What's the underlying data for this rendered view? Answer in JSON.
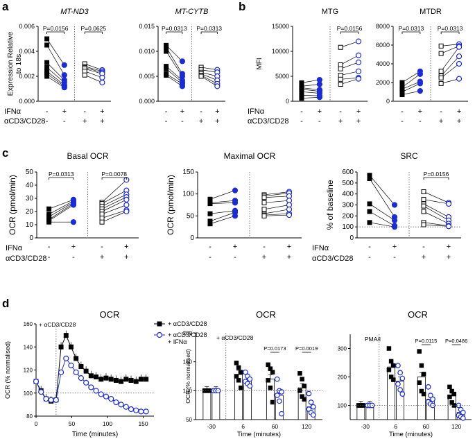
{
  "figure": {
    "panel_letters": [
      "a",
      "b",
      "c",
      "d"
    ],
    "condition_rows": {
      "ifna": "IFNα",
      "cd3": "αCD3/CD28"
    },
    "signs": {
      "minus": "-",
      "plus": "+"
    }
  },
  "colors": {
    "black": "#000000",
    "blue": "#1a2bd9",
    "grid": "#555555"
  },
  "chart_data": [
    {
      "id": "a1",
      "panel": "a",
      "type": "scatter",
      "title": "MT-ND3",
      "title_italic": true,
      "ylabel": "Expression Relative\nto 18s",
      "ylim": [
        0,
        0.006
      ],
      "yticks": [
        0,
        0.002,
        0.004,
        0.006
      ],
      "ytick_labels": [
        "0.000",
        "0.002",
        "0.004",
        "0.006"
      ],
      "groups": [
        {
          "ifna": "-",
          "cd3": "-",
          "marker": "square-filled",
          "values": [
            0.005,
            0.0045,
            0.0031,
            0.0027,
            0.0024,
            0.0022,
            0.002
          ]
        },
        {
          "ifna": "+",
          "cd3": "-",
          "marker": "circle-filled",
          "values": [
            0.0029,
            0.0021,
            0.0017,
            0.0015,
            0.0013,
            0.0012,
            0.0011
          ]
        },
        {
          "ifna": "-",
          "cd3": "+",
          "marker": "square-open",
          "values": [
            0.003,
            0.0028,
            0.0027,
            0.0026,
            0.0024,
            0.0021
          ]
        },
        {
          "ifna": "+",
          "cd3": "+",
          "marker": "circle-open",
          "values": [
            0.0025,
            0.0024,
            0.0023,
            0.0022,
            0.0019,
            0.0015
          ]
        }
      ],
      "pvalues": [
        {
          "pair": [
            0,
            1
          ],
          "label": "P=0.0156"
        },
        {
          "pair": [
            2,
            3
          ],
          "label": "P=0.0625"
        }
      ]
    },
    {
      "id": "a2",
      "panel": "a",
      "type": "scatter",
      "title": "MT-CYTB",
      "title_italic": true,
      "ylabel": "",
      "ylim": [
        0,
        0.015
      ],
      "yticks": [
        0,
        0.005,
        0.01,
        0.015
      ],
      "ytick_labels": [
        "0.000",
        "0.005",
        "0.010",
        "0.015"
      ],
      "groups": [
        {
          "ifna": "-",
          "cd3": "-",
          "marker": "square-filled",
          "values": [
            0.0112,
            0.0108,
            0.01,
            0.007,
            0.0065,
            0.0055,
            0.0052
          ]
        },
        {
          "ifna": "+",
          "cd3": "-",
          "marker": "circle-filled",
          "values": [
            0.008,
            0.0055,
            0.005,
            0.0042,
            0.0038,
            0.0035,
            0.003
          ]
        },
        {
          "ifna": "-",
          "cd3": "+",
          "marker": "square-open",
          "values": [
            0.0068,
            0.0063,
            0.0058,
            0.0055,
            0.0052,
            0.005
          ]
        },
        {
          "ifna": "+",
          "cd3": "+",
          "marker": "circle-open",
          "values": [
            0.0063,
            0.0058,
            0.005,
            0.0042,
            0.0035,
            0.003
          ]
        }
      ],
      "pvalues": [
        {
          "pair": [
            0,
            1
          ],
          "label": "P=0.0313"
        },
        {
          "pair": [
            2,
            3
          ],
          "label": "P=0.0313"
        }
      ]
    },
    {
      "id": "b1",
      "panel": "b",
      "type": "scatter",
      "title": "MTG",
      "ylabel": "MFI",
      "ylim": [
        0,
        15000
      ],
      "yticks": [
        0,
        5000,
        10000,
        15000
      ],
      "ytick_labels": [
        "0",
        "5000",
        "10000",
        "15000"
      ],
      "groups": [
        {
          "ifna": "-",
          "cd3": "-",
          "marker": "square-filled",
          "values": [
            3700,
            3000,
            2700,
            2400,
            1900,
            1200,
            600
          ]
        },
        {
          "ifna": "+",
          "cd3": "-",
          "marker": "circle-filled",
          "values": [
            4300,
            3400,
            2300,
            2000,
            1600,
            1100,
            800
          ]
        },
        {
          "ifna": "-",
          "cd3": "+",
          "marker": "square-open",
          "values": [
            10800,
            7300,
            6500,
            5200,
            4400,
            3400
          ]
        },
        {
          "ifna": "+",
          "cd3": "+",
          "marker": "circle-open",
          "values": [
            12000,
            9200,
            7800,
            6000,
            4700,
            4500
          ]
        }
      ],
      "pvalues": [
        {
          "pair": [
            2,
            3
          ],
          "label": "P=0.0156"
        }
      ]
    },
    {
      "id": "b2",
      "panel": "b",
      "type": "scatter",
      "title": "MTDR",
      "ylabel": "",
      "ylim": [
        0,
        8000
      ],
      "yticks": [
        0,
        2000,
        4000,
        6000,
        8000
      ],
      "ytick_labels": [
        "0",
        "2000",
        "4000",
        "6000",
        "8000"
      ],
      "groups": [
        {
          "ifna": "-",
          "cd3": "-",
          "marker": "square-filled",
          "values": [
            2000,
            1500,
            1300,
            1000,
            700
          ]
        },
        {
          "ifna": "+",
          "cd3": "-",
          "marker": "circle-filled",
          "values": [
            3200,
            2900,
            2100,
            1900,
            1100
          ]
        },
        {
          "ifna": "-",
          "cd3": "+",
          "marker": "square-open",
          "values": [
            5900,
            5100,
            3200,
            2700,
            2500,
            1900
          ]
        },
        {
          "ifna": "+",
          "cd3": "+",
          "marker": "circle-open",
          "values": [
            6100,
            5900,
            5800,
            4800,
            4000,
            2400
          ]
        }
      ],
      "pvalues": [
        {
          "pair": [
            0,
            1
          ],
          "label": "P=0.0313"
        },
        {
          "pair": [
            2,
            3
          ],
          "label": "P=0.0313"
        }
      ]
    },
    {
      "id": "c1",
      "panel": "c",
      "type": "scatter",
      "title": "Basal OCR",
      "ylabel": "OCR (pmol/min)",
      "ylim": [
        0,
        50
      ],
      "yticks": [
        0,
        10,
        20,
        30,
        40,
        50
      ],
      "ytick_labels": [
        "0",
        "10",
        "20",
        "30",
        "40",
        "50"
      ],
      "groups": [
        {
          "ifna": "-",
          "cd3": "-",
          "marker": "square-filled",
          "values": [
            22,
            18,
            16,
            14,
            13,
            12
          ]
        },
        {
          "ifna": "+",
          "cd3": "-",
          "marker": "circle-filled",
          "values": [
            29,
            28,
            27,
            26,
            25,
            12
          ]
        },
        {
          "ifna": "-",
          "cd3": "+",
          "marker": "square-open",
          "values": [
            27,
            26,
            24,
            22,
            20,
            18,
            15,
            12
          ]
        },
        {
          "ifna": "+",
          "cd3": "+",
          "marker": "circle-open",
          "values": [
            44,
            36,
            33,
            31,
            29,
            25,
            21,
            20
          ]
        }
      ],
      "pvalues": [
        {
          "pair": [
            0,
            1
          ],
          "label": "P=0.0313"
        },
        {
          "pair": [
            2,
            3
          ],
          "label": "P=0.0078"
        }
      ]
    },
    {
      "id": "c2",
      "panel": "c",
      "type": "scatter",
      "title": "Maximal OCR",
      "ylabel": "OCR (pmol/min)",
      "ylim": [
        0,
        150
      ],
      "yticks": [
        0,
        50,
        100,
        150
      ],
      "ytick_labels": [
        "0",
        "50",
        "100",
        "150"
      ],
      "groups": [
        {
          "ifna": "-",
          "cd3": "-",
          "marker": "square-filled",
          "values": [
            88,
            80,
            78,
            55,
            38,
            32
          ]
        },
        {
          "ifna": "+",
          "cd3": "-",
          "marker": "circle-filled",
          "values": [
            108,
            85,
            80,
            62,
            58,
            50
          ]
        },
        {
          "ifna": "-",
          "cd3": "+",
          "marker": "square-open",
          "values": [
            98,
            95,
            92,
            80,
            65,
            55,
            52,
            50
          ]
        },
        {
          "ifna": "+",
          "cd3": "+",
          "marker": "circle-open",
          "values": [
            105,
            102,
            95,
            85,
            75,
            65,
            55,
            52
          ]
        }
      ],
      "pvalues": []
    },
    {
      "id": "c3",
      "panel": "c",
      "type": "scatter",
      "title": "SRC",
      "ylabel": "% of baseline",
      "ylim": [
        0,
        600
      ],
      "yticks": [
        0,
        100,
        200,
        300,
        400,
        500,
        600
      ],
      "ytick_labels": [
        "0",
        "100",
        "200",
        "300",
        "400",
        "500",
        "600"
      ],
      "reference_line": 100,
      "groups": [
        {
          "ifna": "-",
          "cd3": "-",
          "marker": "square-filled",
          "values": [
            570,
            540,
            310,
            240,
            140
          ]
        },
        {
          "ifna": "+",
          "cd3": "-",
          "marker": "circle-filled",
          "values": [
            300,
            190,
            160,
            110,
            100
          ]
        },
        {
          "ifna": "-",
          "cd3": "+",
          "marker": "square-open",
          "values": [
            420,
            350,
            310,
            290,
            240,
            140,
            120
          ]
        },
        {
          "ifna": "+",
          "cd3": "+",
          "marker": "circle-open",
          "values": [
            320,
            310,
            190,
            160,
            130,
            110,
            105
          ]
        }
      ],
      "pvalues": [
        {
          "pair": [
            2,
            3
          ],
          "label": "P=0.0156"
        }
      ]
    },
    {
      "id": "d1",
      "panel": "d",
      "type": "line",
      "title": "OCR",
      "xlabel": "Time (minutes)",
      "ylabel": "OCR (% normalised)",
      "xlim": [
        0,
        165
      ],
      "xticks": [
        0,
        50,
        100,
        150
      ],
      "ylim": [
        80,
        160
      ],
      "yticks": [
        80,
        100,
        120,
        140,
        160
      ],
      "reference_line": 100,
      "injection_x": 28,
      "injection_label": "+ αCD3/CD28",
      "x": [
        0,
        7,
        14,
        21,
        28,
        35,
        42,
        49,
        56,
        63,
        70,
        77,
        84,
        91,
        98,
        105,
        112,
        119,
        126,
        133,
        140,
        147,
        154
      ],
      "series": [
        {
          "name": "+ αCD3/CD28",
          "marker": "square-filled",
          "color": "#000000",
          "values": [
            110,
            102,
            95,
            93,
            94,
            140,
            150,
            140,
            130,
            123,
            119,
            115,
            114,
            112,
            113,
            112,
            111,
            110,
            112,
            111,
            110,
            112,
            112
          ]
        },
        {
          "name": "+ αCD3/CD28\n+ IFNα",
          "marker": "circle-open",
          "color": "#1a2bd9",
          "values": [
            110,
            101,
            95,
            94,
            94,
            118,
            130,
            124,
            118,
            113,
            109,
            105,
            102,
            99,
            97,
            95,
            92,
            90,
            88,
            86,
            85,
            84,
            84
          ]
        }
      ]
    },
    {
      "id": "d2",
      "panel": "d",
      "type": "bar",
      "title": "OCR",
      "xlabel": "Time (minutes)",
      "ylabel": "OCR (% normalised)",
      "categories": [
        "-30",
        "6",
        "60",
        "120"
      ],
      "ylim": [
        50,
        200
      ],
      "yticks": [
        50,
        100,
        150,
        200
      ],
      "reference_line": 100,
      "injection_label": "+ αCD3/CD28",
      "series": [
        {
          "name": "+ αCD3/CD28",
          "marker": "square-filled",
          "color": "#000000",
          "values": [
            100,
            128,
            120,
            105
          ],
          "points": [
            [
              100,
              100,
              100,
              100,
              100,
              100
            ],
            [
              148,
              140,
              132,
              125,
              118,
              105
            ],
            [
              145,
              138,
              132,
              118,
              105,
              80
            ],
            [
              130,
              120,
              108,
              100,
              90,
              85
            ]
          ]
        },
        {
          "name": "+ αCD3/CD28 + IFNα",
          "marker": "circle-open",
          "color": "#1a2bd9",
          "values": [
            100,
            118,
            92,
            72
          ],
          "points": [
            [
              100,
              100,
              100,
              100,
              100,
              100
            ],
            [
              132,
              125,
              120,
              116,
              112,
              108
            ],
            [
              120,
              100,
              98,
              92,
              82,
              60
            ],
            [
              95,
              80,
              72,
              68,
              62,
              58
            ]
          ]
        }
      ],
      "pvalues": [
        {
          "category": 2,
          "label": "P=0.0173"
        },
        {
          "category": 3,
          "label": "P=0.0019"
        }
      ]
    },
    {
      "id": "d3",
      "panel": "d",
      "type": "bar",
      "title": "OCR",
      "xlabel": "Time (minutes)",
      "ylabel": "",
      "categories": [
        "-30",
        "6",
        "60",
        "120"
      ],
      "ylim": [
        50,
        350
      ],
      "yticks": [
        100,
        200,
        300
      ],
      "reference_line": 100,
      "injection_label": "PMA/I",
      "series": [
        {
          "name": "+ αCD3/CD28",
          "marker": "square-filled",
          "color": "#000000",
          "values": [
            100,
            235,
            200,
            135
          ],
          "points": [
            [
              100,
              100,
              100,
              100,
              100,
              100
            ],
            [
              300,
              255,
              240,
              225,
              200,
              190
            ],
            [
              290,
              240,
              210,
              180,
              150,
              140
            ],
            [
              165,
              150,
              140,
              130,
              110,
              100
            ]
          ]
        },
        {
          "name": "+ αCD3/CD28 + IFNα",
          "marker": "circle-open",
          "color": "#1a2bd9",
          "values": [
            100,
            185,
            122,
            75
          ],
          "points": [
            [
              100,
              100,
              100,
              100,
              100,
              100
            ],
            [
              240,
              215,
              195,
              175,
              155,
              140
            ],
            [
              165,
              135,
              122,
              112,
              105,
              100
            ],
            [
              100,
              85,
              75,
              65,
              60,
              55
            ]
          ]
        }
      ],
      "pvalues": [
        {
          "category": 2,
          "label": "P=0.0115"
        },
        {
          "category": 3,
          "label": "P=0.0486"
        }
      ]
    }
  ]
}
